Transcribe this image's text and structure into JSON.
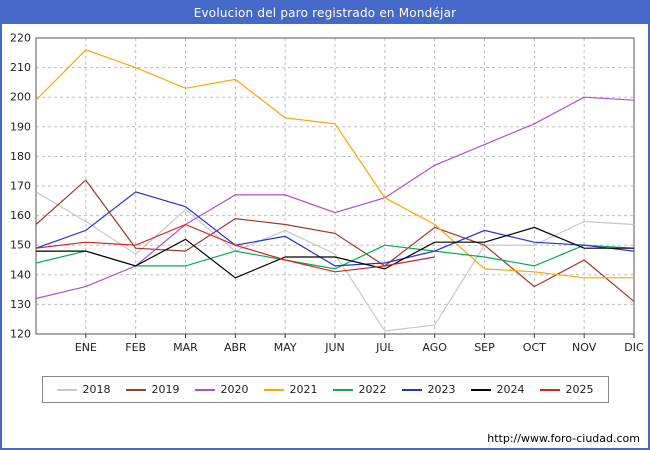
{
  "header": {
    "title": "Evolucion del paro registrado en Mondéjar"
  },
  "footer": {
    "url": "http://www.foro-ciudad.com"
  },
  "chart_data": {
    "type": "line",
    "title": "Evolucion del paro registrado en Mondéjar",
    "xlabel": "",
    "ylabel": "",
    "ylim": [
      120,
      220
    ],
    "yticks": [
      120,
      130,
      140,
      150,
      160,
      170,
      180,
      190,
      200,
      210,
      220
    ],
    "grid": true,
    "legend_position": "bottom",
    "x_labels": [
      "",
      "ENE",
      "FEB",
      "MAR",
      "ABR",
      "MAY",
      "JUN",
      "JUL",
      "AGO",
      "SEP",
      "OCT",
      "NOV",
      "DIC"
    ],
    "series": [
      {
        "name": "2018",
        "color": "#c8c8c8",
        "values": [
          168,
          158,
          147,
          162,
          148,
          155,
          147,
          121,
          123,
          150,
          150,
          158,
          157
        ]
      },
      {
        "name": "2019",
        "color": "#9e3a26",
        "values": [
          157,
          172,
          149,
          148,
          159,
          157,
          154,
          143,
          156,
          150,
          136,
          145,
          131
        ]
      },
      {
        "name": "2020",
        "color": "#b44fd0",
        "values": [
          132,
          136,
          143,
          157,
          167,
          167,
          161,
          166,
          177,
          184,
          191,
          200,
          199
        ]
      },
      {
        "name": "2021",
        "color": "#ffa500",
        "values": [
          199,
          216,
          210,
          203,
          206,
          193,
          191,
          166,
          157,
          142,
          141,
          139,
          139
        ]
      },
      {
        "name": "2022",
        "color": "#00b050",
        "values": [
          144,
          148,
          143,
          143,
          148,
          145,
          142,
          150,
          148,
          146,
          143,
          150,
          149
        ]
      },
      {
        "name": "2023",
        "color": "#2433d0",
        "values": [
          149,
          155,
          168,
          163,
          150,
          153,
          143,
          144,
          148,
          155,
          151,
          150,
          148
        ]
      },
      {
        "name": "2024",
        "color": "#000000",
        "values": [
          148,
          148,
          143,
          152,
          139,
          146,
          146,
          142,
          151,
          151,
          156,
          149,
          149
        ]
      },
      {
        "name": "2025",
        "color": "#e02020",
        "values": [
          149,
          151,
          150,
          157,
          150,
          145,
          141,
          143,
          146,
          null,
          null,
          null,
          null
        ]
      }
    ]
  }
}
